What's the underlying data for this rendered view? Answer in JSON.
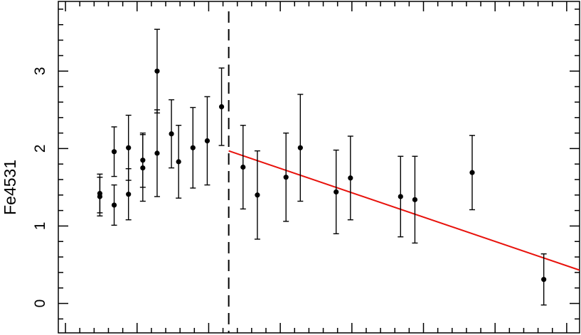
{
  "chart_data": {
    "type": "scatter",
    "title": "",
    "ylabel": "Fe4531",
    "xlabel": "",
    "ylim": [
      -0.38,
      3.9
    ],
    "xlim": [
      -5,
      359
    ],
    "yticks": [
      0,
      1,
      2,
      3
    ],
    "grid": false,
    "series": [
      {
        "points": [
          {
            "x": 24,
            "y": 1.42,
            "err": 0.25
          },
          {
            "x": 24,
            "y": 1.38,
            "err": 0.25
          },
          {
            "x": 34,
            "y": 1.96,
            "err": 0.32
          },
          {
            "x": 34,
            "y": 1.27,
            "err": 0.26
          },
          {
            "x": 44,
            "y": 2.01,
            "err": 0.42
          },
          {
            "x": 44,
            "y": 1.41,
            "err": 0.33
          },
          {
            "x": 54,
            "y": 1.85,
            "err": 0.35
          },
          {
            "x": 54,
            "y": 1.75,
            "err": 0.43
          },
          {
            "x": 64,
            "y": 3.0,
            "err": 0.54
          },
          {
            "x": 64,
            "y": 1.94,
            "err": 0.56
          },
          {
            "x": 74,
            "y": 2.19,
            "err": 0.44
          },
          {
            "x": 79,
            "y": 1.83,
            "err": 0.47
          },
          {
            "x": 89,
            "y": 2.01,
            "err": 0.52
          },
          {
            "x": 99,
            "y": 2.1,
            "err": 0.57
          },
          {
            "x": 109,
            "y": 2.54,
            "err": 0.5
          },
          {
            "x": 124,
            "y": 1.76,
            "err": 0.54
          },
          {
            "x": 134,
            "y": 1.4,
            "err": 0.57
          },
          {
            "x": 154,
            "y": 1.63,
            "err": 0.57
          },
          {
            "x": 164,
            "y": 2.01,
            "err": 0.69
          },
          {
            "x": 189,
            "y": 1.44,
            "err": 0.54
          },
          {
            "x": 199,
            "y": 1.62,
            "err": 0.54
          },
          {
            "x": 234,
            "y": 1.38,
            "err": 0.52
          },
          {
            "x": 244,
            "y": 1.34,
            "err": 0.56
          },
          {
            "x": 284,
            "y": 1.69,
            "err": 0.48
          },
          {
            "x": 334,
            "y": 0.31,
            "err": 0.33
          }
        ]
      }
    ],
    "fit_line": {
      "x": [
        114,
        359
      ],
      "y": [
        1.97,
        0.43
      ],
      "color": "#e8120c"
    },
    "vline": {
      "x": 114,
      "style": "dashed"
    },
    "point_color": "#000000"
  }
}
